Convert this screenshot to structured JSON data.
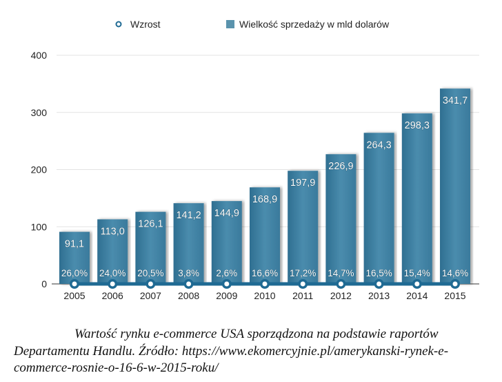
{
  "chart_data": {
    "type": "bar",
    "categories": [
      "2005",
      "2006",
      "2007",
      "2008",
      "2009",
      "2010",
      "2011",
      "2012",
      "2013",
      "2014",
      "2015"
    ],
    "series": [
      {
        "name": "Wielkość sprzedaży w mld dolarów",
        "type": "bar",
        "values": [
          91.1,
          113.0,
          126.1,
          141.2,
          144.9,
          168.9,
          197.9,
          226.9,
          264.3,
          298.3,
          341.7
        ],
        "labels": [
          "91,1",
          "113,0",
          "126,1",
          "141,2",
          "144,9",
          "168,9",
          "197,9",
          "226,9",
          "264,3",
          "298,3",
          "341,7"
        ]
      },
      {
        "name": "Wzrost",
        "type": "line",
        "values": [
          26.0,
          24.0,
          20.5,
          3.8,
          2.6,
          16.6,
          17.2,
          14.7,
          16.5,
          15.4,
          14.6
        ],
        "labels": [
          "26,0%",
          "24,0%",
          "20,5%",
          "3,8%",
          "2,6%",
          "16,6%",
          "17,2%",
          "14,7%",
          "16,5%",
          "15,4%",
          "14,6%"
        ]
      }
    ],
    "yticks": [
      "0",
      "100",
      "200",
      "300",
      "400"
    ],
    "ylim": [
      0,
      400
    ],
    "grid": true,
    "legend": "top",
    "colors": {
      "bar": "#3d7fa0",
      "line": "#1f6a93",
      "grid": "#e3e3e3"
    }
  },
  "caption": {
    "line1": "Wartość rynku e-commerce USA sporządzona na podstawie raportów",
    "line2": "Departamentu Handlu. Źródło: https://www.ekomercyjnie.pl/amerykanski-rynek-e-",
    "line3": "commerce-rosnie-o-16-6-w-2015-roku/"
  }
}
